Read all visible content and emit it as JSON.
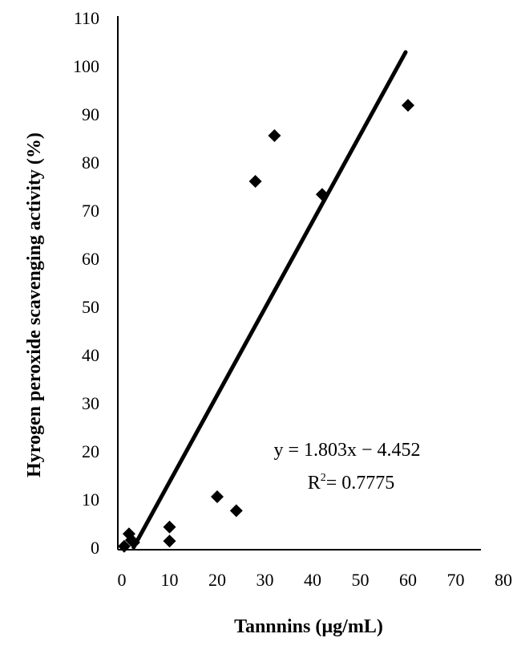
{
  "chart_data": {
    "type": "scatter",
    "xlabel": "Tannnins (µg/mL)",
    "ylabel": "Hyrogen peroxide scavenging activity (%)",
    "xlim": [
      0,
      80
    ],
    "ylim": [
      0,
      110
    ],
    "xticks": [
      0,
      10,
      20,
      30,
      40,
      50,
      60,
      70,
      80
    ],
    "yticks": [
      0,
      10,
      20,
      30,
      40,
      50,
      60,
      70,
      80,
      90,
      100,
      110
    ],
    "grid": false,
    "points": [
      {
        "x": 0.5,
        "y": 0.2
      },
      {
        "x": 1.5,
        "y": 2.8
      },
      {
        "x": 2.0,
        "y": 1.5
      },
      {
        "x": 2.5,
        "y": 1.0
      },
      {
        "x": 10.0,
        "y": 4.2
      },
      {
        "x": 10.0,
        "y": 1.3
      },
      {
        "x": 20.0,
        "y": 10.5
      },
      {
        "x": 24.0,
        "y": 7.6
      },
      {
        "x": 28.0,
        "y": 76.0
      },
      {
        "x": 32.0,
        "y": 85.5
      },
      {
        "x": 42.0,
        "y": 73.3
      },
      {
        "x": 60.0,
        "y": 91.8
      }
    ],
    "trendline": {
      "slope": 1.803,
      "intercept": -4.452,
      "x_range": [
        2.47,
        59.5
      ]
    },
    "annotations": {
      "equation": "y = 1.803x − 4.452",
      "r2_prefix": "R",
      "r2_sup": "2",
      "r2_value": "= 0.7775"
    }
  }
}
